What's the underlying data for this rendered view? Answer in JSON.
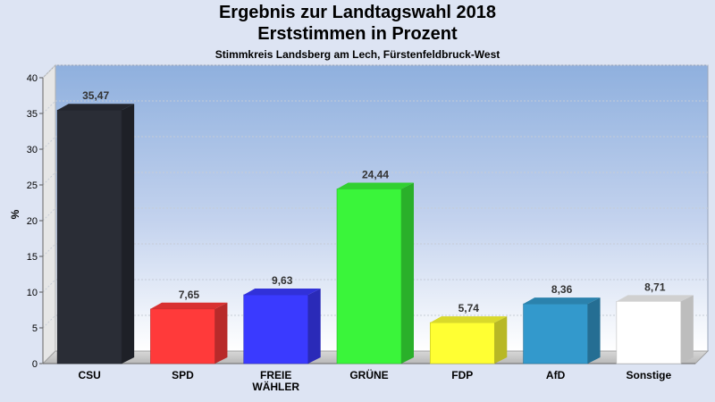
{
  "chart_data": {
    "type": "bar",
    "title": "Ergebnis zur Landtagswahl 2018",
    "title2": "Erststimmen in Prozent",
    "subtitle": "Stimmkreis Landsberg am Lech, Fürstenfeldbruck-West",
    "ylabel": "%",
    "ylim": [
      0,
      40
    ],
    "yticks": [
      0,
      5,
      10,
      15,
      20,
      25,
      30,
      35,
      40
    ],
    "categories": [
      [
        "CSU"
      ],
      [
        "SPD"
      ],
      [
        "FREIE",
        "WÄHLER"
      ],
      [
        "GRÜNE"
      ],
      [
        "FDP"
      ],
      [
        "AfD"
      ],
      [
        "Sonstige"
      ]
    ],
    "values": [
      35.47,
      7.65,
      9.63,
      24.44,
      5.74,
      8.36,
      8.71
    ],
    "value_labels": [
      "35,47",
      "7,65",
      "9,63",
      "24,44",
      "5,74",
      "8,36",
      "8,71"
    ],
    "colors": [
      "#2a2d36",
      "#ff3a3a",
      "#3a3aff",
      "#3af53a",
      "#ffff33",
      "#3399cc",
      "#ffffff"
    ],
    "grid": true,
    "legend": "none"
  }
}
